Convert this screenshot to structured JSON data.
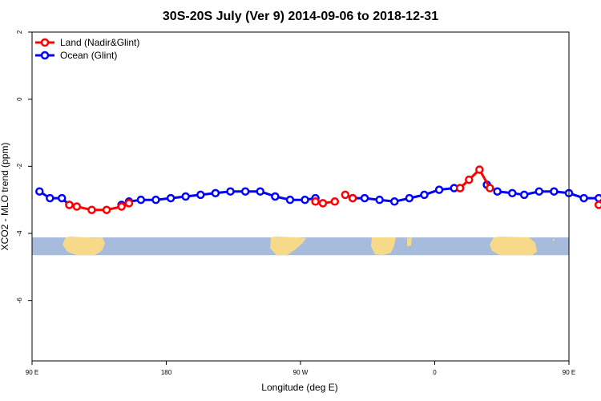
{
  "chart_data": {
    "type": "line",
    "title": "30S-20S July (Ver 9)   2014-09-06 to 2018-12-31",
    "xlabel": "Longitude (deg E)",
    "ylabel": "XCO2 - MLO trend (ppm)",
    "xlim": [
      90,
      450
    ],
    "ylim": [
      -7.8,
      2
    ],
    "x_ticks": [
      {
        "value": 90,
        "label": "90 E"
      },
      {
        "value": 180,
        "label": "180"
      },
      {
        "value": 270,
        "label": "90 W"
      },
      {
        "value": 360,
        "label": "0"
      },
      {
        "value": 450,
        "label": "90 E"
      },
      {
        "value": 540,
        "label": "180"
      }
    ],
    "y_ticks": [
      {
        "value": 2,
        "label": "2"
      },
      {
        "value": 0,
        "label": "0"
      },
      {
        "value": -2,
        "label": "-2"
      },
      {
        "value": -4,
        "label": "-4"
      },
      {
        "value": -6,
        "label": "-6"
      }
    ],
    "grid": false,
    "legend": "top-left",
    "map_strip": {
      "ymin": -4.65,
      "ymax": -4.12,
      "ocean_color": "#a7bcdc",
      "land_color": "#f7d98a"
    },
    "series": [
      {
        "name": "Land (Nadir&Glint)",
        "color": "#ff0000",
        "segments": [
          {
            "x": [
              115,
              120,
              130,
              140,
              150,
              155
            ],
            "y": [
              -3.15,
              -3.2,
              -3.3,
              -3.3,
              -3.2,
              -3.1
            ]
          },
          {
            "x": [
              280,
              285,
              293
            ],
            "y": [
              -3.05,
              -3.1,
              -3.05
            ]
          },
          {
            "x": [
              300,
              305
            ],
            "y": [
              -2.85,
              -2.95
            ]
          },
          {
            "x": [
              377,
              383,
              390,
              397
            ],
            "y": [
              -2.65,
              -2.4,
              -2.1,
              -2.65
            ]
          },
          {
            "x": [
              470,
              480,
              490,
              500,
              510,
              515
            ],
            "y": [
              -3.15,
              -3.2,
              -3.3,
              -3.3,
              -3.2,
              -3.1
            ]
          }
        ]
      },
      {
        "name": "Ocean (Glint)",
        "color": "#0000ff",
        "segments": [
          {
            "x": [
              95,
              102,
              110,
              115
            ],
            "y": [
              -2.75,
              -2.95,
              -2.95,
              -3.15
            ]
          },
          {
            "x": [
              150,
              155,
              163,
              173,
              183,
              193,
              203,
              213,
              223,
              233,
              243,
              253,
              263,
              273,
              280
            ],
            "y": [
              -3.15,
              -3.05,
              -3.0,
              -3.0,
              -2.95,
              -2.9,
              -2.85,
              -2.8,
              -2.75,
              -2.75,
              -2.75,
              -2.9,
              -3.0,
              -3.0,
              -2.95
            ]
          },
          {
            "x": [
              305,
              313,
              323,
              333,
              343,
              353,
              363,
              373,
              377
            ],
            "y": [
              -2.95,
              -2.95,
              -3.0,
              -3.05,
              -2.95,
              -2.85,
              -2.7,
              -2.65,
              -2.65
            ]
          },
          {
            "x": [
              395,
              402,
              412,
              420,
              430,
              440,
              450,
              460,
              470
            ],
            "y": [
              -2.55,
              -2.75,
              -2.8,
              -2.85,
              -2.75,
              -2.75,
              -2.8,
              -2.95,
              -2.95
            ]
          },
          {
            "x": [
              515,
              522,
              532,
              540
            ],
            "y": [
              -3.15,
              -3.05,
              -3.0,
              -3.0
            ]
          }
        ]
      }
    ]
  }
}
